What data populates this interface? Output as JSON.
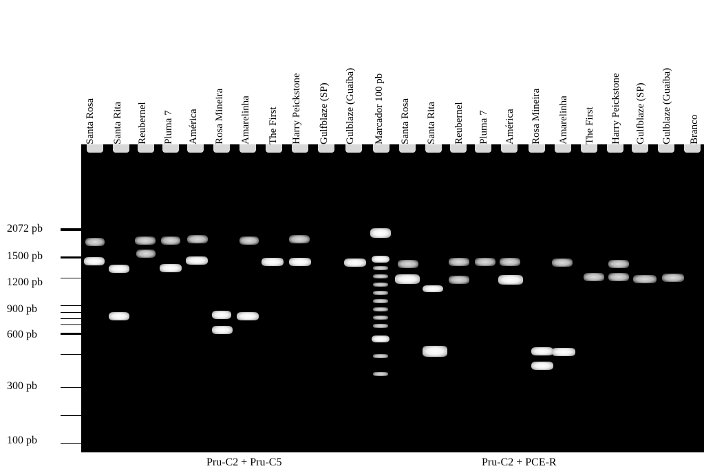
{
  "lanes": [
    "Santa Rosa",
    "Santa Rita",
    "Reubernel",
    "Pluma 7",
    "América",
    "Rosa Mineira",
    "Amarelinha",
    "The First",
    "Harry Peickstone",
    "Gulfblaze (SP)",
    "Gulblaze (Guaíba)",
    "Marcador 100 pb",
    "Santa Rosa",
    "Santa Rita",
    "Reubernel",
    "Pluma 7",
    "América",
    "Rosa Mineira",
    "Amarelinha",
    "The First",
    "Harry Peickstone",
    "Gulfblaze (SP)",
    "Gulblaze (Guaíba)",
    "Branco"
  ],
  "markers": [
    "2072 pb",
    "1500 pb",
    "1200 pb",
    "900 pb",
    "600 pb",
    "300 pb",
    "100 pb"
  ],
  "groups": [
    "Pru-C2 + Pru-C5",
    "Pru-C2 + PCE-R"
  ]
}
